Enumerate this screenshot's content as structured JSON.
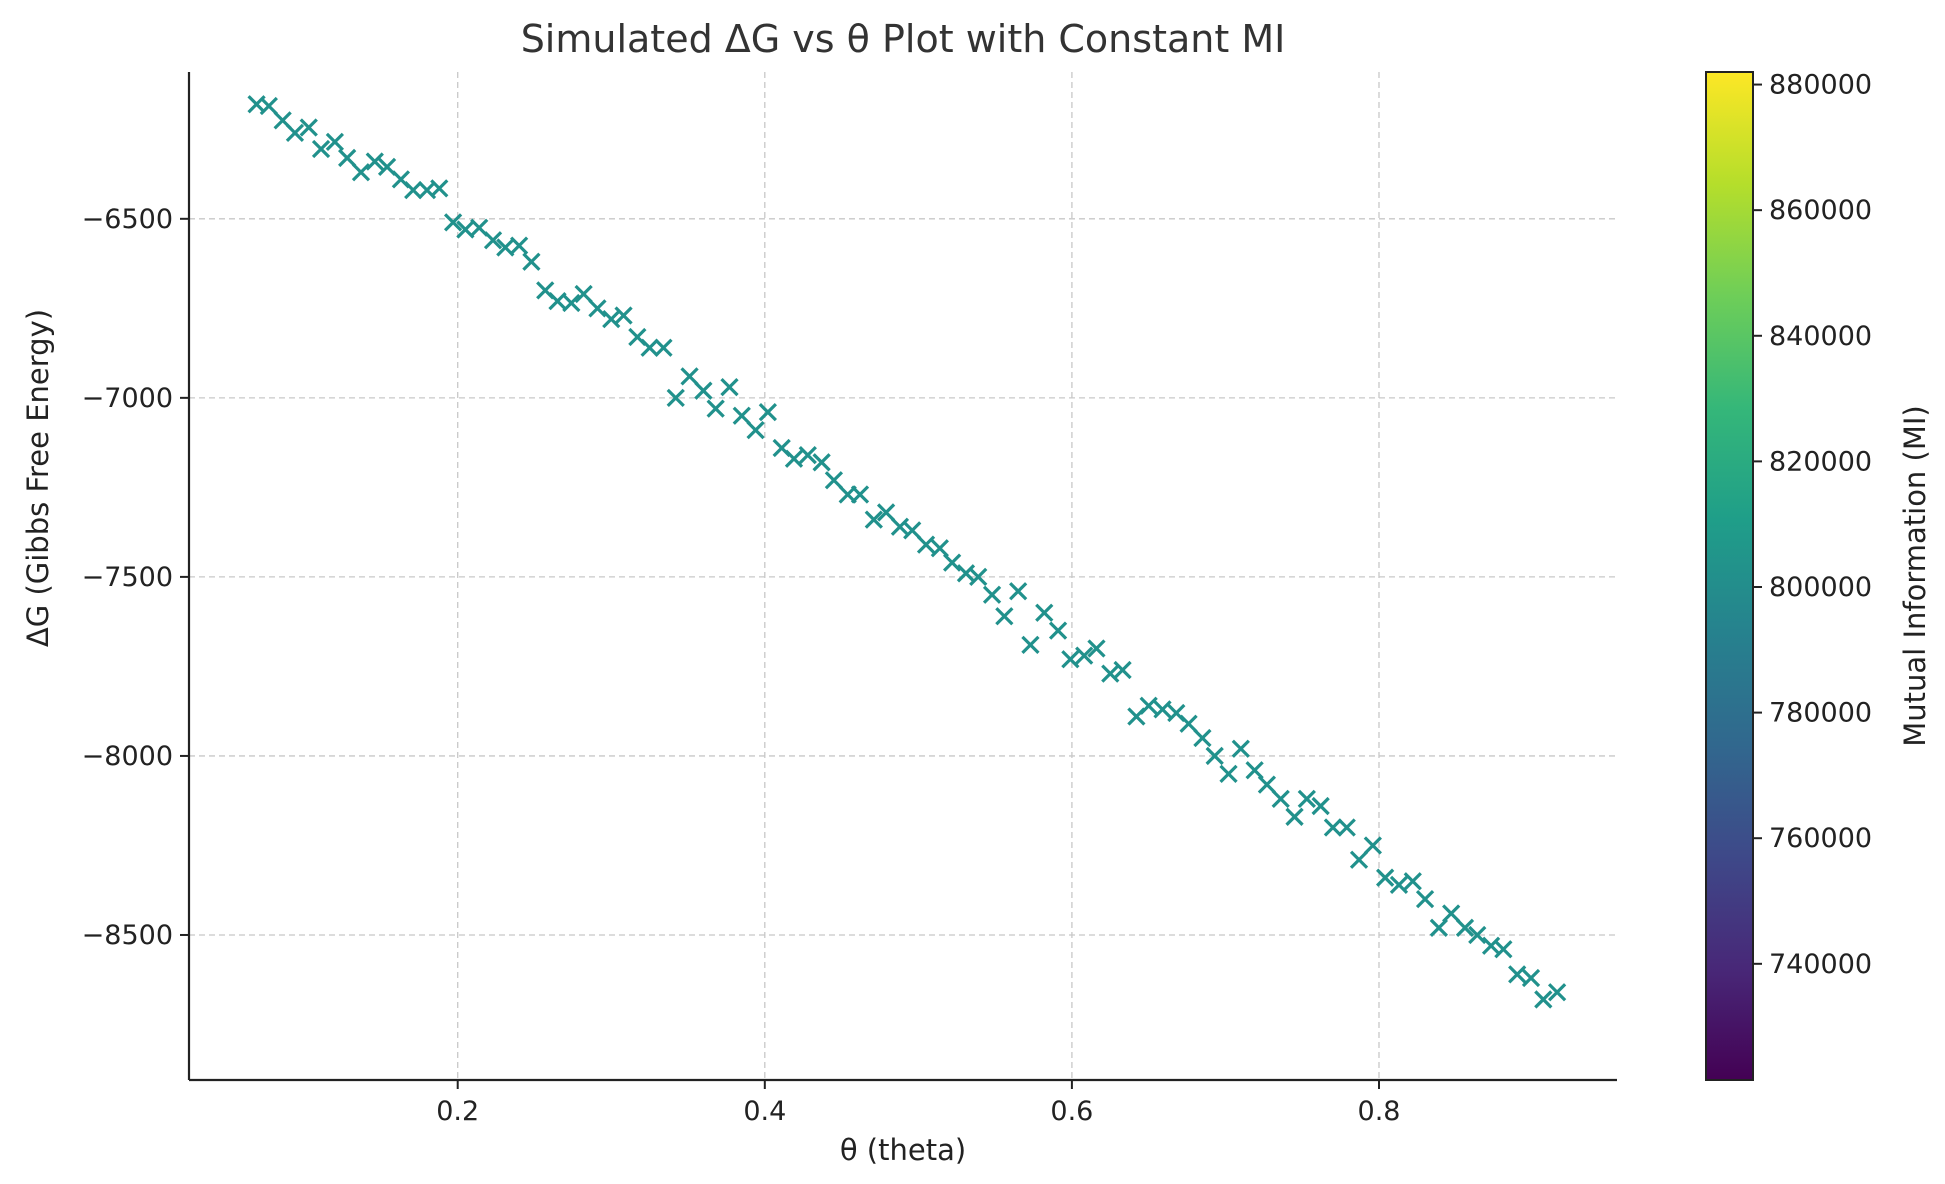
{
  "chart_data": {
    "type": "scatter",
    "title": "Simulated ΔG vs θ Plot with Constant MI",
    "xlabel": "θ (theta)",
    "ylabel": "ΔG (Gibbs Free Energy)",
    "xlim": [
      0.025,
      0.955
    ],
    "ylim": [
      -8905,
      -6090
    ],
    "xticks": [
      0.2,
      0.4,
      0.6,
      0.8
    ],
    "xtick_labels": [
      "0.2",
      "0.4",
      "0.6",
      "0.8"
    ],
    "yticks": [
      -6500,
      -7000,
      -7500,
      -8000,
      -8500
    ],
    "ytick_labels": [
      "−6500",
      "−7000",
      "−7500",
      "−8000",
      "−8500"
    ],
    "grid": true,
    "marker": "x",
    "marker_color": "#21918c",
    "colorbar": {
      "label": "Mutual Information (MI)",
      "colormap": "viridis",
      "range": [
        721500,
        882000
      ],
      "ticks": [
        740000,
        760000,
        780000,
        800000,
        820000,
        840000,
        860000,
        880000
      ],
      "tick_labels": [
        "740000",
        "760000",
        "780000",
        "800000",
        "820000",
        "840000",
        "860000",
        "880000"
      ],
      "stops": [
        "#440154",
        "#482878",
        "#3e4989",
        "#31688e",
        "#26828e",
        "#1f9e89",
        "#35b779",
        "#6ece58",
        "#b5de2b",
        "#fde725"
      ]
    },
    "series": [
      {
        "mi": 800000,
        "x": [
          0.069,
          0.077,
          0.086,
          0.094,
          0.103,
          0.111,
          0.12,
          0.128,
          0.137,
          0.146,
          0.154,
          0.163,
          0.171,
          0.18,
          0.188,
          0.197,
          0.205,
          0.214,
          0.223,
          0.231,
          0.24,
          0.248,
          0.257,
          0.265,
          0.274,
          0.282,
          0.291,
          0.3,
          0.308,
          0.317,
          0.325,
          0.334,
          0.342,
          0.351,
          0.36,
          0.368,
          0.377,
          0.385,
          0.394,
          0.402,
          0.411,
          0.419,
          0.428,
          0.437,
          0.445,
          0.454,
          0.462,
          0.471,
          0.479,
          0.488,
          0.496,
          0.505,
          0.514,
          0.522,
          0.531,
          0.539,
          0.548,
          0.556,
          0.565,
          0.573,
          0.582,
          0.591,
          0.599,
          0.608,
          0.616,
          0.625,
          0.633,
          0.642,
          0.65,
          0.659,
          0.668,
          0.676,
          0.685,
          0.693,
          0.702,
          0.71,
          0.719,
          0.727,
          0.736,
          0.745,
          0.753,
          0.762,
          0.77,
          0.779,
          0.787,
          0.796,
          0.804,
          0.813,
          0.822,
          0.83,
          0.839,
          0.847,
          0.856,
          0.864,
          0.873,
          0.881,
          0.89,
          0.899,
          0.907,
          0.916
        ],
        "y": [
          -6180,
          -6185,
          -6225,
          -6260,
          -6245,
          -6305,
          -6285,
          -6330,
          -6370,
          -6340,
          -6355,
          -6390,
          -6420,
          -6420,
          -6415,
          -6510,
          -6530,
          -6525,
          -6560,
          -6580,
          -6575,
          -6620,
          -6700,
          -6730,
          -6735,
          -6710,
          -6750,
          -6780,
          -6770,
          -6830,
          -6860,
          -6860,
          -7000,
          -6940,
          -6980,
          -7030,
          -6970,
          -7050,
          -7090,
          -7040,
          -7140,
          -7170,
          -7160,
          -7180,
          -7230,
          -7270,
          -7270,
          -7340,
          -7320,
          -7360,
          -7370,
          -7410,
          -7420,
          -7460,
          -7490,
          -7500,
          -7550,
          -7610,
          -7540,
          -7690,
          -7600,
          -7650,
          -7730,
          -7720,
          -7700,
          -7770,
          -7760,
          -7890,
          -7860,
          -7870,
          -7880,
          -7910,
          -7950,
          -8000,
          -8050,
          -7980,
          -8040,
          -8080,
          -8120,
          -8170,
          -8120,
          -8140,
          -8200,
          -8200,
          -8290,
          -8250,
          -8340,
          -8360,
          -8350,
          -8400,
          -8480,
          -8440,
          -8480,
          -8500,
          -8530,
          -8540,
          -8610,
          -8620,
          -8680,
          -8660
        ]
      }
    ]
  }
}
